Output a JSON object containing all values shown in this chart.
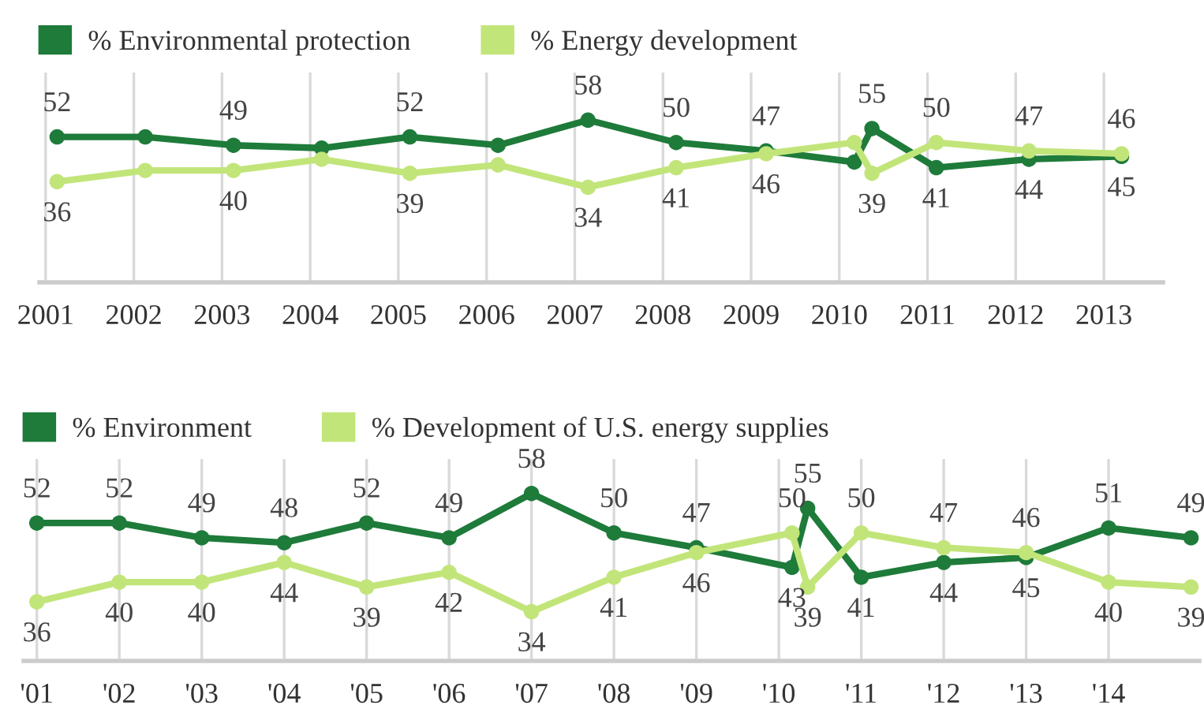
{
  "chart_data": [
    {
      "type": "line",
      "x": [
        2001.13,
        2002.13,
        2003.13,
        2004.13,
        2005.13,
        2006.13,
        2007.15,
        2008.15,
        2009.17,
        2010.17,
        2010.37,
        2011.1,
        2012.15,
        2013.2
      ],
      "series": [
        {
          "name": "% Environmental protection",
          "color": "#1e7b3a",
          "values": [
            52,
            52,
            49,
            48,
            52,
            49,
            58,
            50,
            47,
            43,
            55,
            41,
            44,
            45
          ],
          "value_labels": [
            "52",
            null,
            "49",
            null,
            "52",
            null,
            "58",
            "50",
            "47",
            null,
            "55",
            "41",
            "44",
            "45"
          ]
        },
        {
          "name": "% Energy development",
          "color": "#c2e57a",
          "values": [
            36,
            40,
            40,
            44,
            39,
            42,
            34,
            41,
            46,
            50,
            39,
            50,
            47,
            46
          ],
          "value_labels": [
            "36",
            null,
            "40",
            null,
            "39",
            null,
            "34",
            "41",
            "46",
            null,
            "39",
            "50",
            "47",
            "46"
          ]
        }
      ],
      "xlim": [
        2000.93,
        2013.67
      ],
      "xticks": [
        2001,
        2002,
        2003,
        2004,
        2005,
        2006,
        2007,
        2008,
        2009,
        2010,
        2011,
        2012,
        2013
      ],
      "ylim": [
        0,
        75
      ],
      "tick_labels": "x",
      "grid": "x",
      "marker": "circle",
      "legend": "top left"
    },
    {
      "type": "line",
      "x": [
        2001,
        2002,
        2003,
        2004,
        2005,
        2006,
        2007,
        2008,
        2009,
        2010.16,
        2010.35,
        2011,
        2012,
        2013,
        2014,
        2015
      ],
      "series": [
        {
          "name": "% Environment",
          "color": "#1e7b3a",
          "values": [
            52,
            52,
            49,
            48,
            52,
            49,
            58,
            50,
            47,
            43,
            55,
            41,
            44,
            45,
            51,
            49
          ]
        },
        {
          "name": "% Development of U.S. energy supplies",
          "color": "#c2e57a",
          "values": [
            36,
            40,
            40,
            44,
            39,
            42,
            34,
            41,
            46,
            50,
            39,
            50,
            47,
            46,
            40,
            39
          ]
        }
      ],
      "xlim": [
        2000.84,
        2015.1
      ],
      "xticks": [
        {
          "value": 2001,
          "label": "'01"
        },
        {
          "value": 2002,
          "label": "'02"
        },
        {
          "value": 2003,
          "label": "'03"
        },
        {
          "value": 2004,
          "label": "'04"
        },
        {
          "value": 2005,
          "label": "'05"
        },
        {
          "value": 2006,
          "label": "'06"
        },
        {
          "value": 2007,
          "label": "'07"
        },
        {
          "value": 2008,
          "label": "'08"
        },
        {
          "value": 2009,
          "label": "'09"
        },
        {
          "value": 2010,
          "label": "'10"
        },
        {
          "value": 2011,
          "label": "'11"
        },
        {
          "value": 2012,
          "label": "'12"
        },
        {
          "value": 2013,
          "label": "'13"
        },
        {
          "value": 2014,
          "label": "'14"
        }
      ],
      "ylim": [
        24,
        65
      ],
      "tick_labels": "x",
      "grid": "x",
      "marker": "circle",
      "legend": "top left",
      "data_labels": true
    }
  ]
}
